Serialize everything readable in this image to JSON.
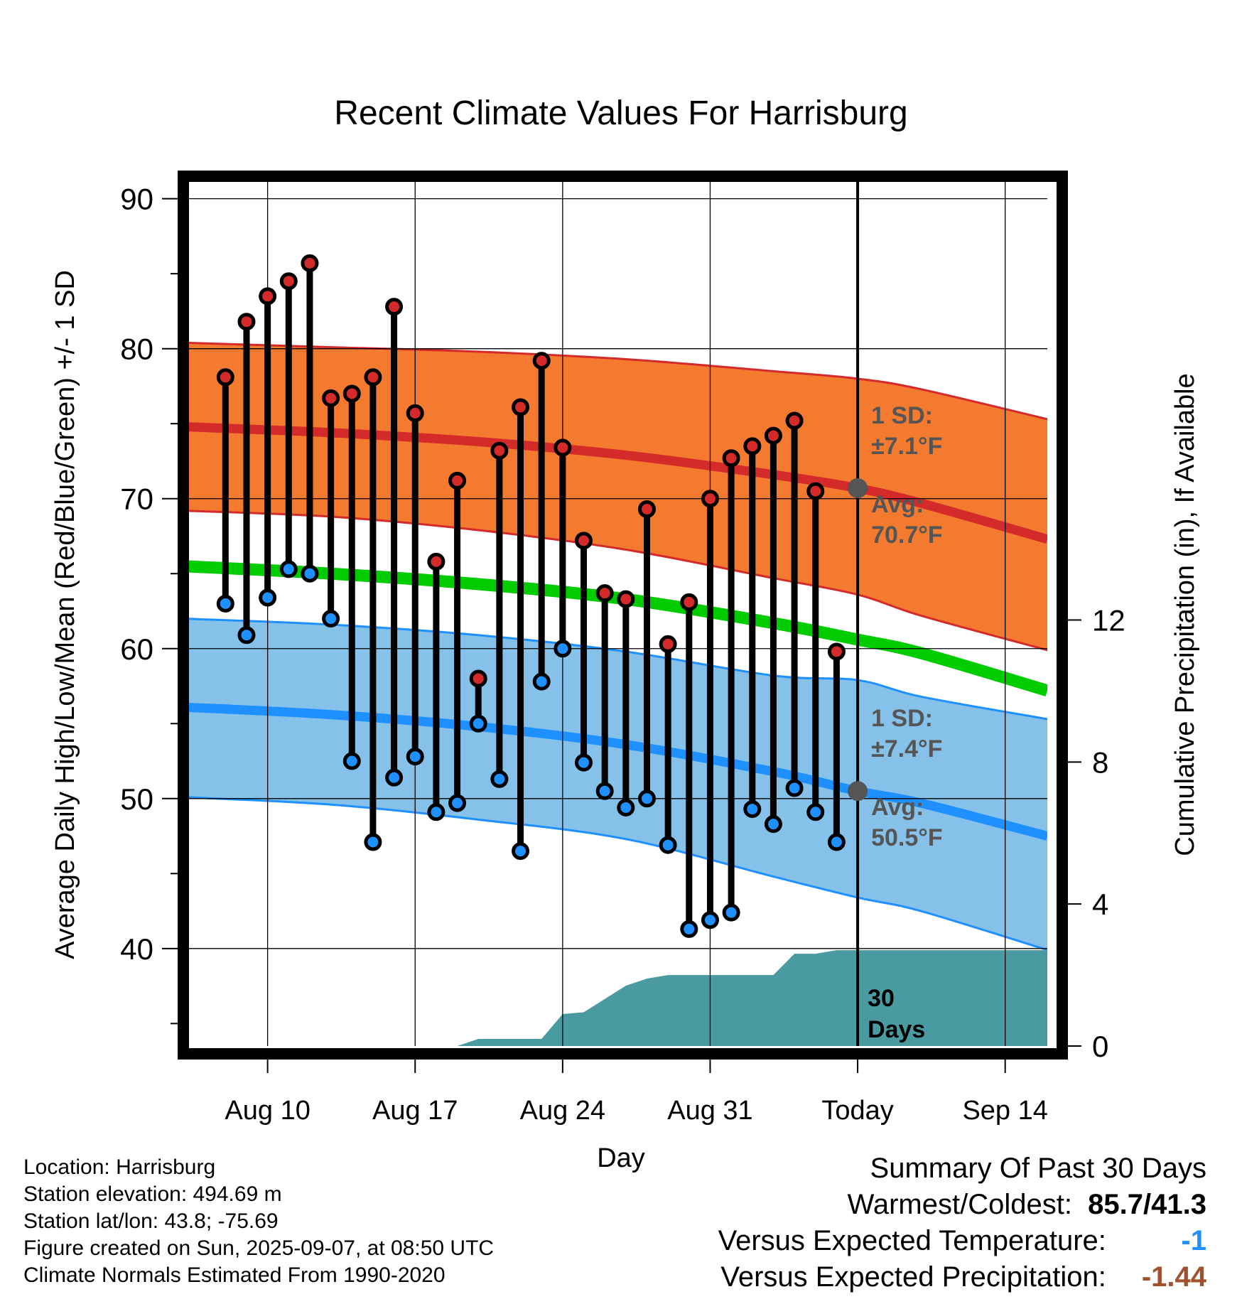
{
  "title": "Recent Climate Values For Harrisburg",
  "info": {
    "location": "Location: Harrisburg",
    "elevation": "Station elevation: 494.69 m",
    "latlon": "Station lat/lon: 43.8; -75.69",
    "created": "Figure created on Sun, 2025-09-07, at 08:50 UTC",
    "normals": "Climate Normals Estimated From 1990-2020"
  },
  "summary": {
    "heading": "Summary Of Past 30 Days",
    "warm_cold_label": "Warmest/Coldest:",
    "warm_cold_value": "85.7/41.3",
    "temp_label": "Versus Expected Temperature:",
    "temp_value": "-1",
    "precip_label": "Versus Expected Precipitation:",
    "precip_value": "-1.44",
    "temp_color": "#1e90ff",
    "precip_color": "#a0522d"
  },
  "colors": {
    "high_band": "#f47a30",
    "high_mean": "#d42a2a",
    "low_band": "#85c1e9",
    "low_mean": "#1e90ff",
    "mean_line": "#00cc00",
    "precip": "#4a9aa2",
    "high_dot": "#d42a2a",
    "low_dot": "#1e90ff",
    "today_dot": "#555555"
  },
  "chart_data": {
    "type": "line",
    "xlabel": "Day",
    "ylabel": "Average Daily High/Low/Mean (Red/Blue/Green) +/- 1 SD",
    "y2label": "Cumulative Precipitation (in), If Available",
    "ylim": [
      33.5,
      91.5
    ],
    "y2lim": [
      0,
      24.5
    ],
    "xlim": [
      "2025-08-06",
      "2025-09-16"
    ],
    "yticks": [
      "40",
      "50",
      "60",
      "70",
      "80",
      "90"
    ],
    "y2ticks": [
      "0",
      "4",
      "8",
      "12"
    ],
    "xticks": [
      {
        "date": "2025-08-10",
        "label": "Aug 10"
      },
      {
        "date": "2025-08-17",
        "label": "Aug 17"
      },
      {
        "date": "2025-08-24",
        "label": "Aug 24"
      },
      {
        "date": "2025-08-31",
        "label": "Aug 31"
      },
      {
        "date": "2025-09-07",
        "label": "Today"
      },
      {
        "date": "2025-09-14",
        "label": "Sep 14"
      }
    ],
    "today": "2025-09-07",
    "normals": {
      "dates": [
        "2025-08-06",
        "2025-08-13",
        "2025-08-20",
        "2025-08-27",
        "2025-09-03",
        "2025-09-07",
        "2025-09-10",
        "2025-09-16"
      ],
      "high_upper": [
        80.4,
        80.1,
        79.8,
        79.3,
        78.5,
        78.0,
        77.3,
        75.3
      ],
      "high_mean": [
        74.8,
        74.4,
        73.8,
        72.9,
        71.6,
        70.7,
        69.7,
        67.3
      ],
      "high_lower": [
        69.2,
        68.8,
        67.9,
        66.6,
        64.7,
        63.6,
        62.2,
        59.9
      ],
      "mean": [
        65.5,
        65.0,
        64.3,
        63.3,
        61.7,
        60.6,
        59.7,
        57.2
      ],
      "low_upper": [
        62.0,
        61.6,
        60.9,
        59.8,
        58.2,
        57.9,
        56.8,
        55.3
      ],
      "low_mean": [
        56.1,
        55.6,
        54.8,
        53.6,
        51.8,
        50.5,
        49.7,
        47.5
      ],
      "low_lower": [
        50.1,
        49.6,
        48.6,
        47.3,
        44.8,
        43.4,
        42.5,
        39.9
      ]
    },
    "today_high_avg": {
      "label_heading": "1 SD:",
      "sd": "±7.1°F",
      "label": "Avg:",
      "value": "70.7°F",
      "y": 70.7
    },
    "today_low_avg": {
      "label_heading": "1 SD:",
      "sd": "±7.4°F",
      "label": "Avg:",
      "value": "50.5°F",
      "y": 50.5
    },
    "days": [
      "2025-08-08",
      "2025-08-09",
      "2025-08-10",
      "2025-08-11",
      "2025-08-12",
      "2025-08-13",
      "2025-08-14",
      "2025-08-15",
      "2025-08-16",
      "2025-08-17",
      "2025-08-18",
      "2025-08-19",
      "2025-08-20",
      "2025-08-21",
      "2025-08-22",
      "2025-08-23",
      "2025-08-24",
      "2025-08-25",
      "2025-08-26",
      "2025-08-27",
      "2025-08-28",
      "2025-08-29",
      "2025-08-30",
      "2025-08-31",
      "2025-09-01",
      "2025-09-02",
      "2025-09-03",
      "2025-09-04",
      "2025-09-05",
      "2025-09-06"
    ],
    "highs": [
      78.1,
      81.8,
      83.5,
      84.5,
      85.7,
      76.7,
      77.0,
      78.1,
      82.8,
      75.7,
      65.8,
      71.2,
      58.0,
      73.2,
      76.1,
      79.2,
      73.4,
      67.2,
      63.7,
      63.3,
      69.3,
      60.3,
      63.1,
      70.0,
      72.7,
      73.5,
      74.2,
      75.2,
      70.5,
      59.8
    ],
    "lows": [
      63.0,
      60.9,
      63.4,
      65.3,
      65.0,
      62.0,
      52.5,
      47.1,
      51.4,
      52.8,
      49.1,
      49.7,
      55.0,
      51.3,
      46.5,
      57.8,
      60.0,
      52.4,
      50.5,
      49.4,
      50.0,
      46.9,
      41.3,
      41.9,
      42.4,
      49.3,
      48.3,
      50.7,
      49.1,
      47.1
    ],
    "precip": {
      "dates": [
        "2025-08-06",
        "2025-08-19",
        "2025-08-20",
        "2025-08-23",
        "2025-08-24",
        "2025-08-25",
        "2025-08-27",
        "2025-08-28",
        "2025-08-29",
        "2025-09-03",
        "2025-09-04",
        "2025-09-05",
        "2025-09-06",
        "2025-09-16"
      ],
      "values": [
        0.0,
        0.0,
        0.2,
        0.2,
        0.9,
        0.95,
        1.7,
        1.9,
        2.0,
        2.0,
        2.6,
        2.6,
        2.7,
        2.7
      ]
    },
    "precip_label_count": "30",
    "precip_label_unit": "Days"
  }
}
